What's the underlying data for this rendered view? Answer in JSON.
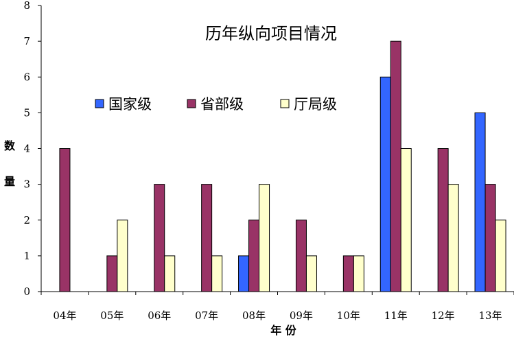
{
  "chart_data": {
    "type": "bar",
    "title": "历年纵向项目情况",
    "xlabel": "年 份",
    "ylabel_chars": [
      "数",
      "量"
    ],
    "ylim": [
      0,
      8
    ],
    "yticks": [
      "0",
      "1",
      "2",
      "3",
      "4",
      "5",
      "6",
      "7",
      "8"
    ],
    "categories": [
      "04年",
      "05年",
      "06年",
      "07年",
      "08年",
      "09年",
      "10年",
      "11年",
      "12年",
      "13年"
    ],
    "series": [
      {
        "name": "国家级",
        "color": "#3366FF",
        "values": [
          0,
          0,
          0,
          0,
          1,
          0,
          0,
          6,
          0,
          5
        ]
      },
      {
        "name": "省部级",
        "color": "#993366",
        "values": [
          4,
          1,
          3,
          3,
          2,
          2,
          1,
          7,
          4,
          3
        ]
      },
      {
        "name": "厅局级",
        "color": "#FFFFCC",
        "values": [
          0,
          2,
          1,
          1,
          3,
          1,
          1,
          4,
          3,
          2
        ]
      }
    ],
    "grid": false,
    "legend_position": "upper-left"
  }
}
